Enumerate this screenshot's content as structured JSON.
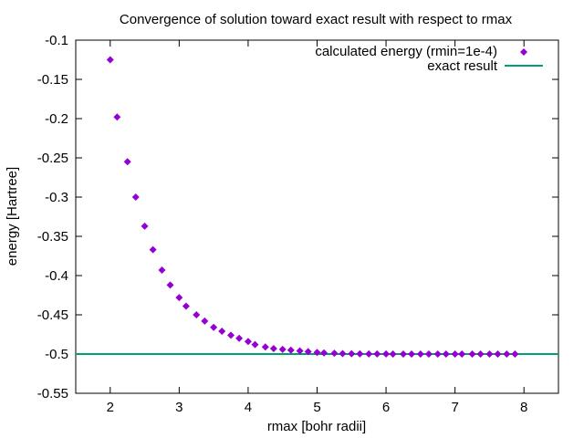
{
  "chart_data": {
    "type": "scatter",
    "title": "Convergence of solution toward exact result with respect to rmax",
    "xlabel": "rmax [bohr radii]",
    "ylabel": "energy [Hartree]",
    "xlim": [
      1.5,
      8.5
    ],
    "ylim": [
      -0.55,
      -0.1
    ],
    "xticks": [
      2,
      3,
      4,
      5,
      6,
      7,
      8
    ],
    "yticks": [
      -0.55,
      -0.5,
      -0.45,
      -0.4,
      -0.35,
      -0.3,
      -0.25,
      -0.2,
      -0.15,
      -0.1
    ],
    "xtick_labels": [
      "2",
      "3",
      "4",
      "5",
      "6",
      "7",
      "8"
    ],
    "ytick_labels": [
      "-0.55",
      "-0.5",
      "-0.45",
      "-0.4",
      "-0.35",
      "-0.3",
      "-0.25",
      "-0.2",
      "-0.15",
      "-0.1"
    ],
    "grid": false,
    "legend_position": "top-right",
    "series": [
      {
        "name": "calculated energy (rmin=1e-4)",
        "kind": "points",
        "color": "#9400d3",
        "x": [
          2.0,
          2.1,
          2.25,
          2.37,
          2.5,
          2.62,
          2.75,
          2.87,
          3.0,
          3.1,
          3.25,
          3.37,
          3.5,
          3.62,
          3.75,
          3.87,
          4.0,
          4.1,
          4.25,
          4.37,
          4.5,
          4.62,
          4.75,
          4.87,
          5.0,
          5.1,
          5.25,
          5.37,
          5.5,
          5.62,
          5.75,
          5.87,
          6.0,
          6.1,
          6.25,
          6.37,
          6.5,
          6.62,
          6.75,
          6.87,
          7.0,
          7.1,
          7.25,
          7.37,
          7.5,
          7.62,
          7.75,
          7.87
        ],
        "y": [
          -0.125,
          -0.198,
          -0.255,
          -0.3,
          -0.337,
          -0.367,
          -0.393,
          -0.412,
          -0.428,
          -0.439,
          -0.45,
          -0.458,
          -0.466,
          -0.471,
          -0.476,
          -0.48,
          -0.484,
          -0.488,
          -0.491,
          -0.493,
          -0.494,
          -0.495,
          -0.496,
          -0.497,
          -0.498,
          -0.4985,
          -0.499,
          -0.4994,
          -0.4996,
          -0.4997,
          -0.4998,
          -0.4999,
          -0.4999,
          -0.5,
          -0.5,
          -0.5,
          -0.5,
          -0.5,
          -0.5,
          -0.5,
          -0.5,
          -0.5,
          -0.5,
          -0.5,
          -0.5,
          -0.5,
          -0.5,
          -0.5
        ]
      },
      {
        "name": "exact result",
        "kind": "hline",
        "color": "#009e73",
        "y": -0.5
      }
    ]
  }
}
